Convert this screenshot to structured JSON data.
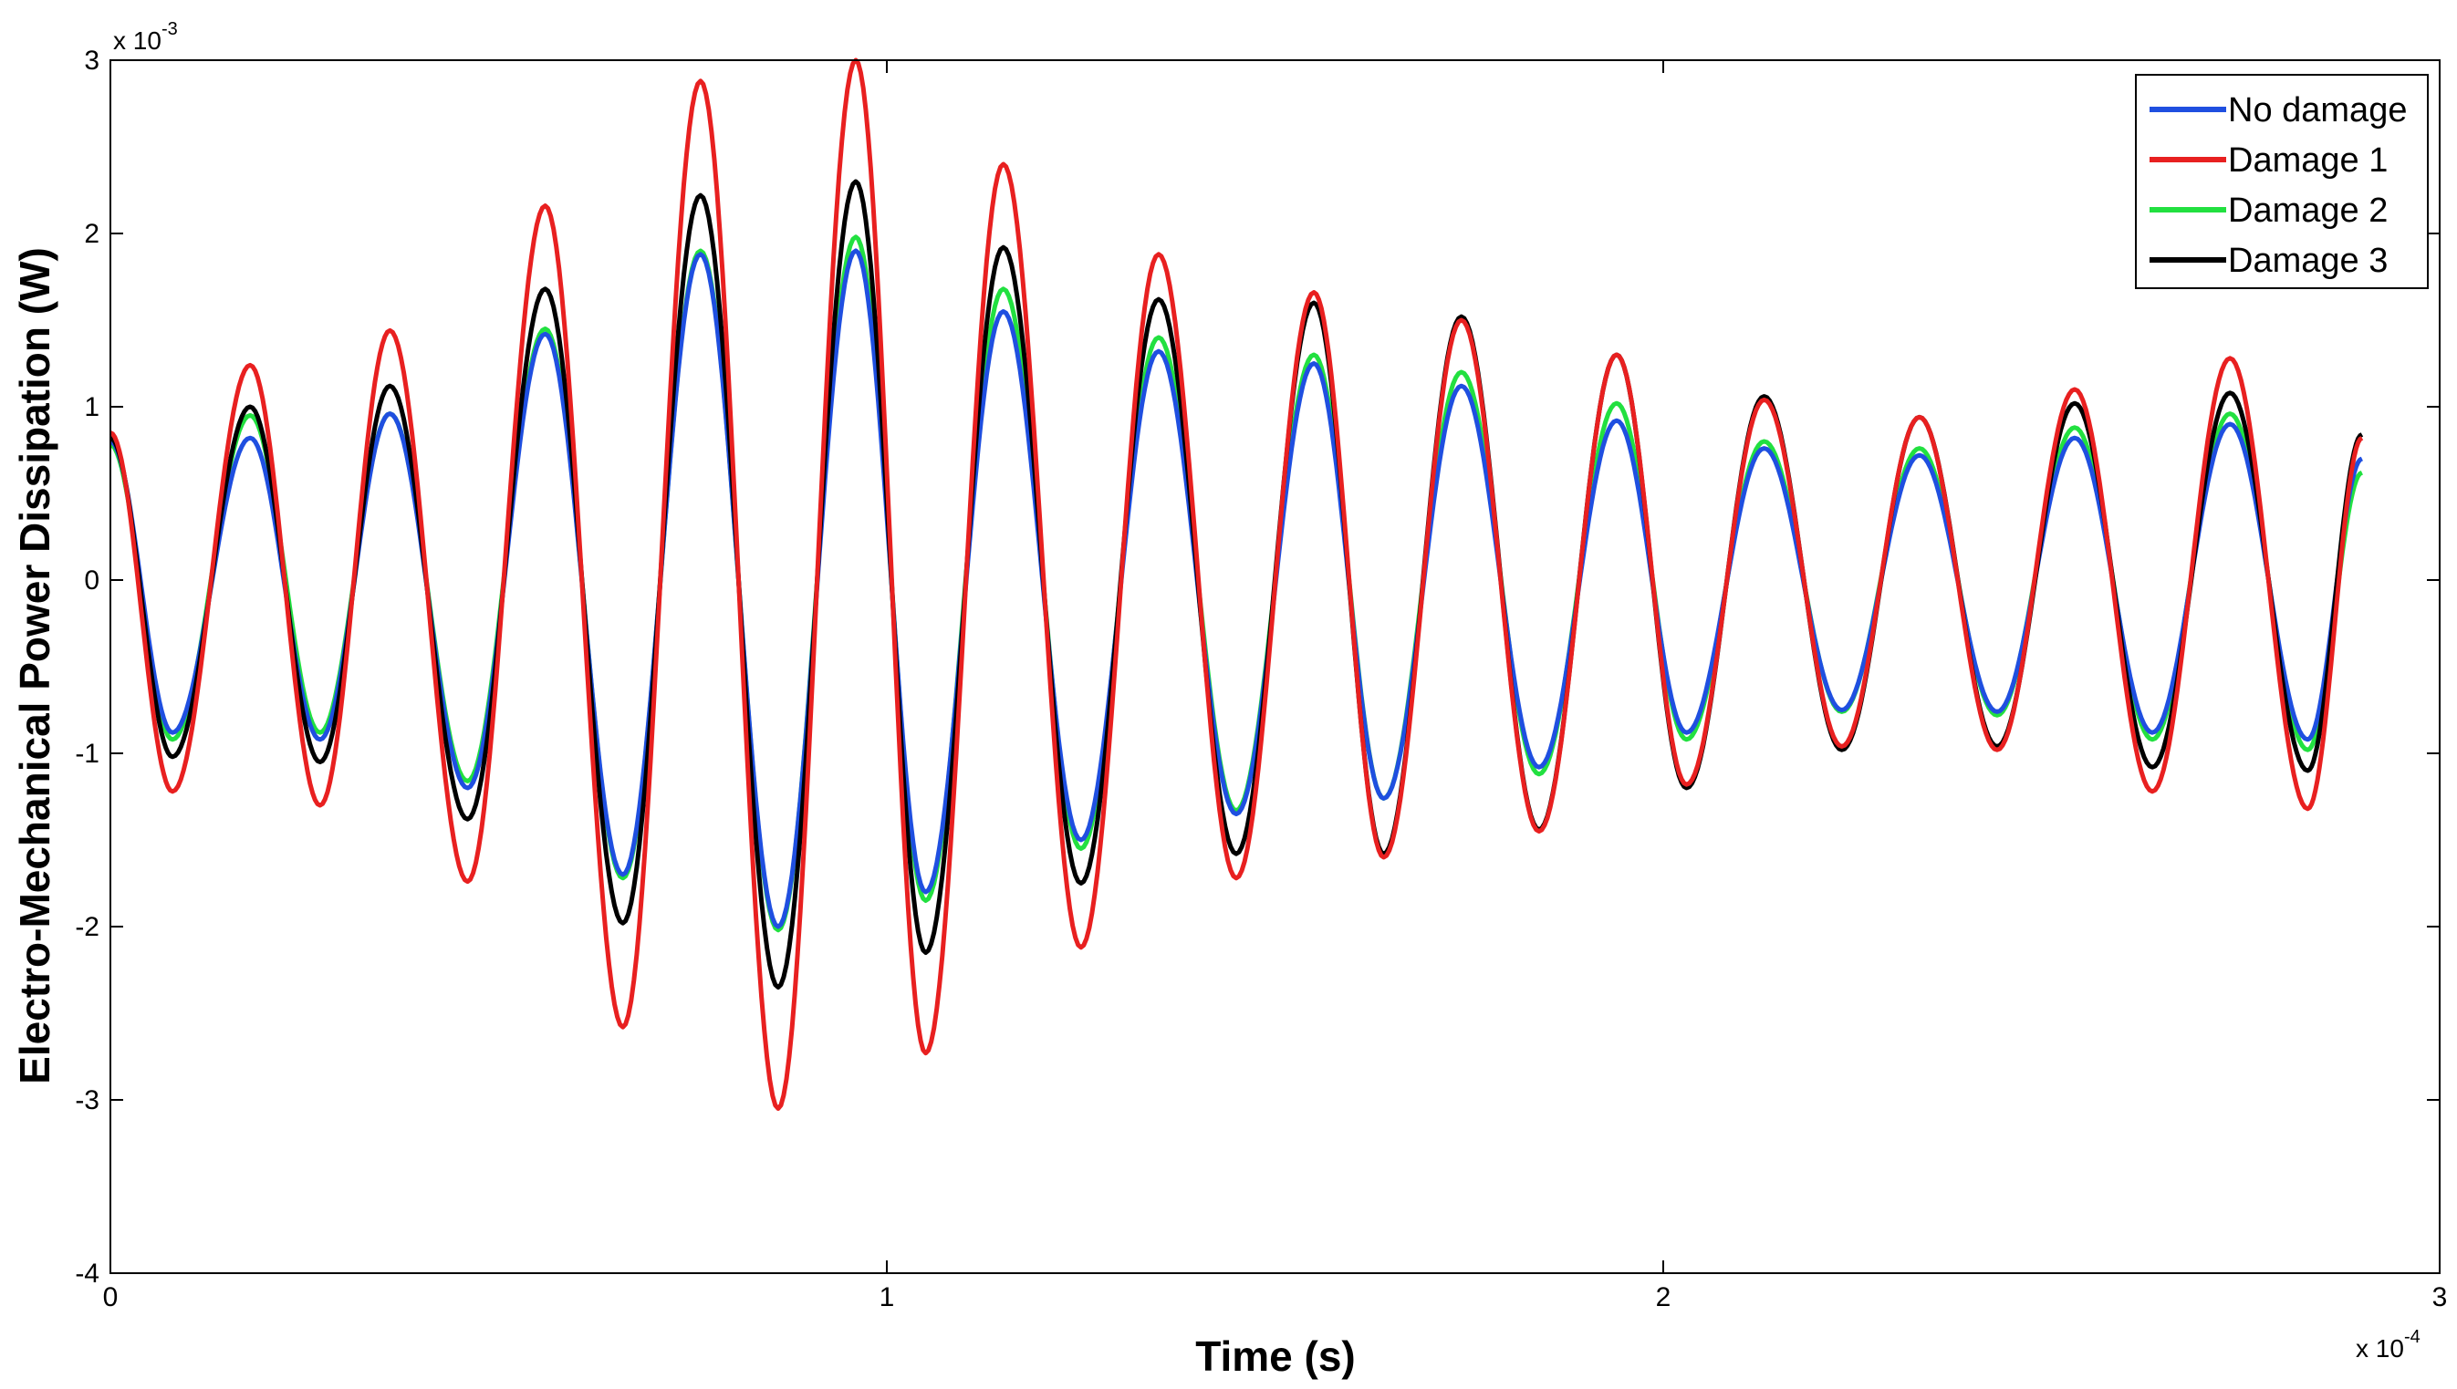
{
  "chart_data": {
    "type": "line",
    "title": "",
    "xlabel": "Time (s)",
    "ylabel": "Electro-Mechanical Power Dissipation (W)",
    "x_multiplier": "x 10",
    "x_multiplier_exp": "-4",
    "y_multiplier": "x 10",
    "y_multiplier_exp": "-3",
    "xlim": [
      0,
      3
    ],
    "ylim": [
      -4,
      3
    ],
    "xticks": [
      0,
      1,
      2,
      3
    ],
    "xtick_labels": [
      "0",
      "1",
      "2",
      "3"
    ],
    "yticks": [
      -4,
      -3,
      -2,
      -1,
      0,
      1,
      2,
      3
    ],
    "ytick_labels": [
      "-4",
      "-3",
      "-2",
      "-1",
      "0",
      "1",
      "2",
      "3"
    ],
    "grid": false,
    "legend_position": "top-right",
    "series": [
      {
        "name": "No damage",
        "color": "#1f4fe0",
        "x": [
          0,
          0.08,
          0.18,
          0.27,
          0.36,
          0.46,
          0.56,
          0.66,
          0.76,
          0.86,
          0.96,
          1.05,
          1.15,
          1.25,
          1.35,
          1.45,
          1.55,
          1.64,
          1.74,
          1.84,
          1.94,
          2.03,
          2.13,
          2.23,
          2.33,
          2.43,
          2.53,
          2.63,
          2.73,
          2.83,
          2.9
        ],
        "y": [
          0.8,
          -0.88,
          0.82,
          -0.92,
          0.96,
          -1.2,
          1.42,
          -1.7,
          1.88,
          -2.0,
          1.9,
          -1.8,
          1.55,
          -1.5,
          1.32,
          -1.35,
          1.25,
          -1.26,
          1.12,
          -1.08,
          0.92,
          -0.88,
          0.76,
          -0.75,
          0.72,
          -0.76,
          0.82,
          -0.88,
          0.9,
          -0.92,
          0.7
        ]
      },
      {
        "name": "Damage 1",
        "color": "#e82020",
        "x": [
          0,
          0.08,
          0.18,
          0.27,
          0.36,
          0.46,
          0.56,
          0.66,
          0.76,
          0.86,
          0.96,
          1.05,
          1.15,
          1.25,
          1.35,
          1.45,
          1.55,
          1.64,
          1.74,
          1.84,
          1.94,
          2.03,
          2.13,
          2.23,
          2.33,
          2.43,
          2.53,
          2.63,
          2.73,
          2.83,
          2.9
        ],
        "y": [
          0.85,
          -1.22,
          1.24,
          -1.3,
          1.44,
          -1.74,
          2.16,
          -2.58,
          2.88,
          -3.05,
          3.0,
          -2.73,
          2.4,
          -2.12,
          1.88,
          -1.72,
          1.66,
          -1.6,
          1.5,
          -1.45,
          1.3,
          -1.18,
          1.04,
          -0.96,
          0.94,
          -0.98,
          1.1,
          -1.22,
          1.28,
          -1.32,
          0.82
        ]
      },
      {
        "name": "Damage 2",
        "color": "#22e040",
        "x": [
          0,
          0.08,
          0.18,
          0.27,
          0.36,
          0.46,
          0.56,
          0.66,
          0.76,
          0.86,
          0.96,
          1.05,
          1.15,
          1.25,
          1.35,
          1.45,
          1.55,
          1.64,
          1.74,
          1.84,
          1.94,
          2.03,
          2.13,
          2.23,
          2.33,
          2.43,
          2.53,
          2.63,
          2.73,
          2.83,
          2.9
        ],
        "y": [
          0.78,
          -0.92,
          0.95,
          -0.88,
          0.96,
          -1.16,
          1.45,
          -1.72,
          1.9,
          -2.02,
          1.98,
          -1.85,
          1.68,
          -1.55,
          1.4,
          -1.33,
          1.3,
          -1.26,
          1.2,
          -1.12,
          1.02,
          -0.92,
          0.8,
          -0.76,
          0.76,
          -0.78,
          0.88,
          -0.92,
          0.96,
          -0.98,
          0.62
        ]
      },
      {
        "name": "Damage 3",
        "color": "#000000",
        "x": [
          0,
          0.08,
          0.18,
          0.27,
          0.36,
          0.46,
          0.56,
          0.66,
          0.76,
          0.86,
          0.96,
          1.05,
          1.15,
          1.25,
          1.35,
          1.45,
          1.55,
          1.64,
          1.74,
          1.84,
          1.94,
          2.03,
          2.13,
          2.23,
          2.33,
          2.43,
          2.53,
          2.63,
          2.73,
          2.83,
          2.9
        ],
        "y": [
          0.82,
          -1.02,
          1.0,
          -1.05,
          1.12,
          -1.38,
          1.68,
          -1.98,
          2.22,
          -2.35,
          2.3,
          -2.15,
          1.92,
          -1.75,
          1.62,
          -1.58,
          1.6,
          -1.58,
          1.52,
          -1.44,
          1.3,
          -1.2,
          1.06,
          -0.98,
          0.94,
          -0.96,
          1.02,
          -1.08,
          1.08,
          -1.1,
          0.84
        ]
      }
    ]
  }
}
